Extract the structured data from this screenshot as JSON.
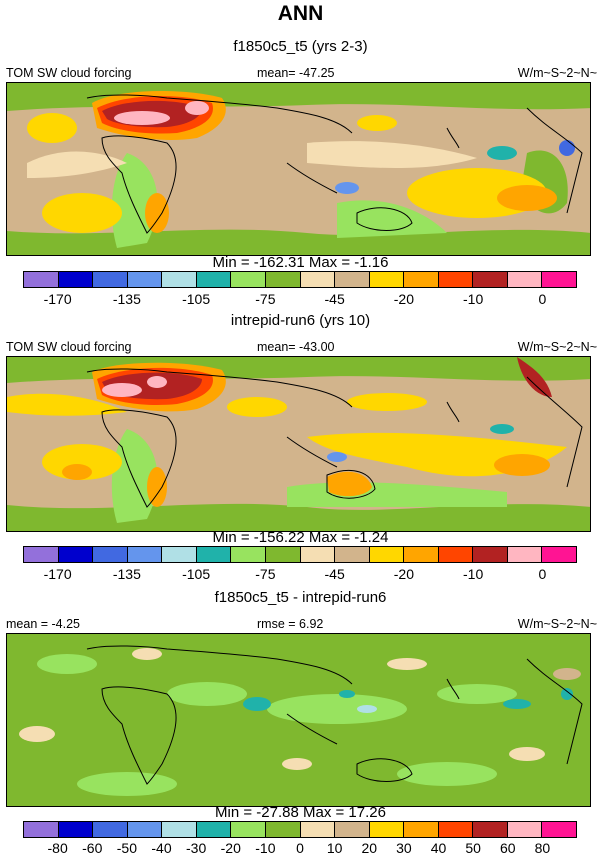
{
  "title": "ANN",
  "panels": [
    {
      "title": "f1850c5_t5 (yrs 2-3)",
      "left_label": "TOM SW cloud forcing",
      "center_label": "mean= -47.25",
      "right_label": "W/m~S~2~N~",
      "minmax": "Min = -162.31 Max =  -1.16",
      "ticks": [
        "-170",
        "-135",
        "-105",
        "-75",
        "-45",
        "-20",
        "-10",
        "0"
      ]
    },
    {
      "title": "intrepid-run6 (yrs 10)",
      "left_label": "TOM SW cloud forcing",
      "center_label": "mean= -43.00",
      "right_label": "W/m~S~2~N~",
      "minmax": "Min = -156.22 Max =  -1.24",
      "ticks": [
        "-170",
        "-135",
        "-105",
        "-75",
        "-45",
        "-20",
        "-10",
        "0"
      ]
    },
    {
      "title": "f1850c5_t5 - intrepid-run6",
      "left_label": "mean =  -4.25",
      "center_label": "rmse =  6.92",
      "right_label": "W/m~S~2~N~",
      "minmax": "Min = -27.88 Max =  17.26",
      "ticks": [
        "-80",
        "-60",
        "-50",
        "-40",
        "-30",
        "-20",
        "-10",
        "0",
        "10",
        "20",
        "30",
        "40",
        "50",
        "60",
        "80"
      ]
    }
  ],
  "colorbar_colors": [
    "#9370db",
    "#0000cd",
    "#4169e1",
    "#6495ed",
    "#b0e0e6",
    "#20b2aa",
    "#98e35f",
    "#7fb82f",
    "#f5deb3",
    "#d2b48c",
    "#ffd700",
    "#ffa500",
    "#ff4500",
    "#b22222",
    "#ffb6c1",
    "#ff1493"
  ]
}
